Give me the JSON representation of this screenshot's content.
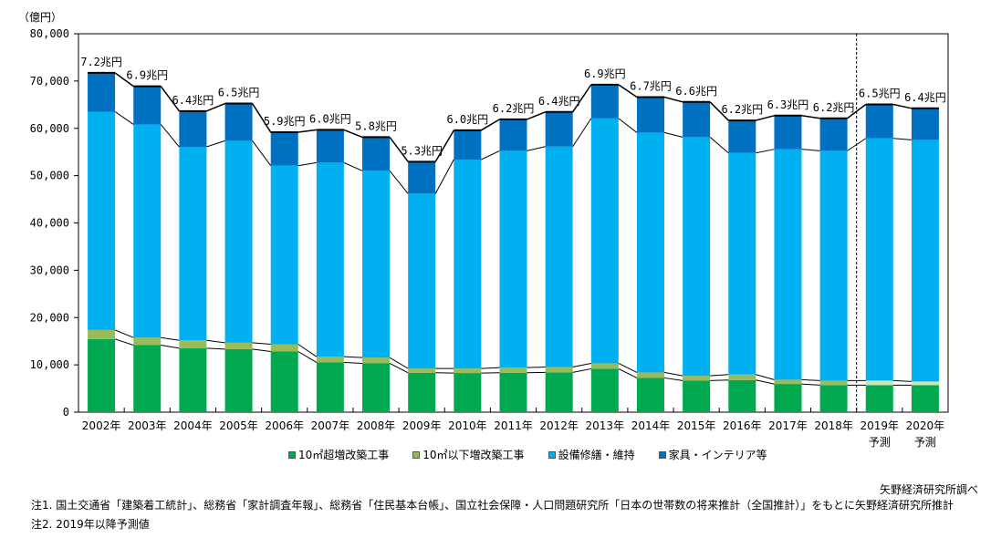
{
  "chart_data": {
    "type": "bar",
    "stacked": true,
    "unit_label": "（億円）",
    "categories": [
      "2002年",
      "2003年",
      "2004年",
      "2005年",
      "2006年",
      "2007年",
      "2008年",
      "2009年",
      "2010年",
      "2011年",
      "2012年",
      "2013年",
      "2014年",
      "2015年",
      "2016年",
      "2017年",
      "2018年",
      "2019年",
      "2020年"
    ],
    "category_sublabels": [
      "",
      "",
      "",
      "",
      "",
      "",
      "",
      "",
      "",
      "",
      "",
      "",
      "",
      "",
      "",
      "",
      "",
      "予測",
      "予測"
    ],
    "series": [
      {
        "name": "10㎡超増改築工事",
        "color": "#00a84f",
        "projected_color": "#00a84f",
        "values": [
          15450,
          14170,
          13520,
          13330,
          12820,
          10510,
          10320,
          8330,
          8270,
          8330,
          8400,
          9170,
          7240,
          6670,
          6790,
          5960,
          5710,
          5710,
          5710
        ]
      },
      {
        "name": "10㎡以下増改築工事",
        "color": "#9bbb59",
        "projected_color": "#d0e4b0",
        "values": [
          1920,
          1600,
          1670,
          1350,
          1540,
          1220,
          1220,
          900,
          960,
          1090,
          1150,
          1150,
          1160,
          1020,
          1160,
          900,
          960,
          960,
          770
        ]
      },
      {
        "name": "設備修繕・維持",
        "color": "#00b0f0",
        "projected_color": "#00b0f0",
        "values": [
          46150,
          45060,
          40900,
          42690,
          37740,
          41020,
          39480,
          36970,
          44170,
          45830,
          46600,
          51780,
          50700,
          50450,
          46850,
          48720,
          48580,
          51210,
          51080
        ]
      },
      {
        "name": "家具・インテリア等",
        "color": "#0070c0",
        "projected_color": "#0070c0",
        "values": [
          8210,
          8070,
          7560,
          7880,
          7070,
          6930,
          7120,
          6750,
          6200,
          6650,
          7310,
          7130,
          7500,
          7440,
          6870,
          7110,
          6870,
          7180,
          6670
        ]
      }
    ],
    "total_labels": [
      "7.2兆円",
      "6.9兆円",
      "6.4兆円",
      "6.5兆円",
      "5.9兆円",
      "6.0兆円",
      "5.8兆円",
      "5.3兆円",
      "6.0兆円",
      "6.2兆円",
      "6.4兆円",
      "6.9兆円",
      "6.7兆円",
      "6.6兆円",
      "6.2兆円",
      "6.3兆円",
      "6.2兆円",
      "6.5兆円",
      "6.4兆円"
    ],
    "projection_start_index": 17,
    "ylim": [
      0,
      80000
    ],
    "yticks": [
      0,
      10000,
      20000,
      30000,
      40000,
      50000,
      60000,
      70000,
      80000
    ],
    "ytick_labels": [
      "0",
      "10,000",
      "20,000",
      "30,000",
      "40,000",
      "50,000",
      "60,000",
      "70,000",
      "80,000"
    ],
    "xlabel": "",
    "ylabel": "億円",
    "grid": false,
    "legend_position": "bottom",
    "title": ""
  },
  "legend": {
    "items": [
      {
        "label": "10㎡超増改築工事",
        "color": "#00a84f"
      },
      {
        "label": "10㎡以下増改築工事",
        "color": "#9bbb59"
      },
      {
        "label": "設備修繕・維持",
        "color": "#00b0f0"
      },
      {
        "label": "家具・インテリア等",
        "color": "#0070c0"
      }
    ]
  },
  "source": "矢野経済研究所調べ",
  "notes": [
    "注1. 国土交通省「建築着工統計」、総務省「家計調査年報」、総務省「住民基本台帳」、国立社会保障・人口問題研究所「日本の世帯数の将来推計（全国推計）」をもとに矢野経済研究所推計",
    "注2. 2019年以降予測値"
  ]
}
